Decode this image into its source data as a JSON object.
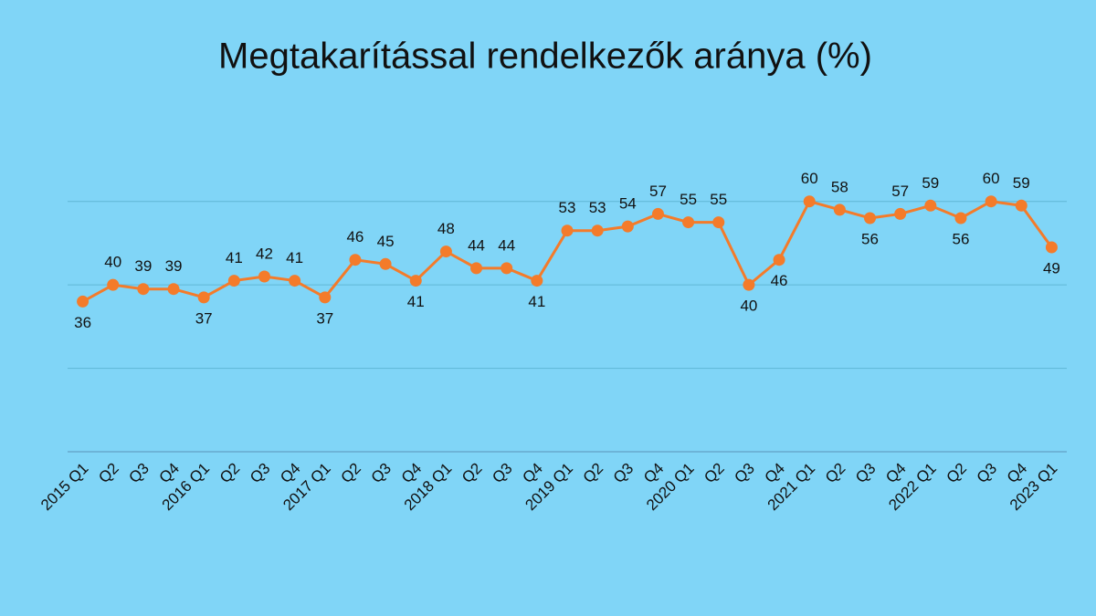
{
  "chart_data": {
    "type": "line",
    "title": "Megtakarítással rendelkezők aránya (%)",
    "categories": [
      "2015 Q1",
      "Q2",
      "Q3",
      "Q4",
      "2016 Q1",
      "Q2",
      "Q3",
      "Q4",
      "2017 Q1",
      "Q2",
      "Q3",
      "Q4",
      "2018 Q1",
      "Q2",
      "Q3",
      "Q4",
      "2019 Q1",
      "Q2",
      "Q3",
      "Q4",
      "2020 Q1",
      "Q2",
      "Q3",
      "Q4",
      "2021 Q1",
      "Q2",
      "Q3",
      "Q4",
      "2022 Q1",
      "Q2",
      "Q3",
      "Q4",
      "2023 Q1"
    ],
    "values": [
      36,
      40,
      39,
      39,
      37,
      41,
      42,
      41,
      37,
      46,
      45,
      41,
      48,
      44,
      44,
      41,
      53,
      53,
      54,
      57,
      55,
      55,
      40,
      46,
      60,
      58,
      56,
      57,
      59,
      56,
      60,
      59,
      49
    ],
    "color": "#f47b2a",
    "ylim": [
      0,
      70
    ],
    "yticks": [
      0,
      20,
      40,
      60
    ],
    "grid": true
  }
}
